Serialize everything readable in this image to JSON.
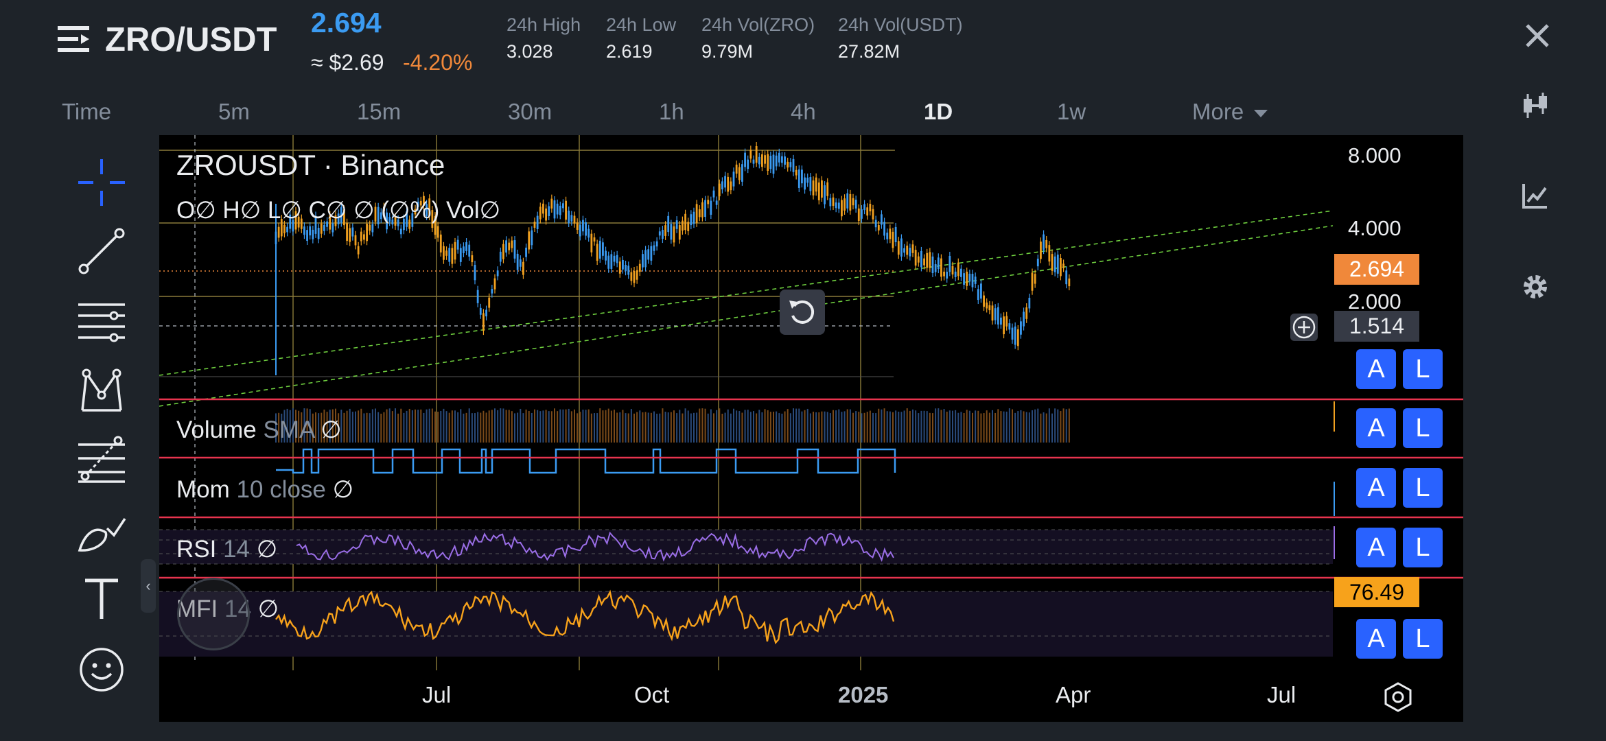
{
  "header": {
    "pair": "ZRO/USDT",
    "last_price": "2.694",
    "usd_price": "≈ $2.69",
    "change_pct": "-4.20%",
    "stats": [
      {
        "label": "24h High",
        "value": "3.028"
      },
      {
        "label": "24h Low",
        "value": "2.619"
      },
      {
        "label": "24h Vol(ZRO)",
        "value": "9.79M"
      },
      {
        "label": "24h Vol(USDT)",
        "value": "27.82M"
      }
    ]
  },
  "timeframes": {
    "items": [
      "Time",
      "5m",
      "15m",
      "30m",
      "1h",
      "4h",
      "1D",
      "1w"
    ],
    "more": "More",
    "active": "1D"
  },
  "chart": {
    "symbol_title": "ZROUSDT · Binance",
    "ohlc_line": "O∅ H∅ L∅ C∅ ∅ (∅%)  Vol∅",
    "price_ticks": [
      "8.000",
      "4.000",
      "2.000"
    ],
    "current_price_tag": "2.694",
    "crosshair_price_tag": "1.514",
    "mfi_value_tag": "76.49",
    "time_ticks": [
      "Jul",
      "Oct",
      "2025",
      "Apr",
      "Jul"
    ],
    "indicators": [
      {
        "name": "Volume",
        "params": "SMA",
        "value": "∅"
      },
      {
        "name": "Mom",
        "params": "10 close",
        "value": "∅"
      },
      {
        "name": "RSI",
        "params": "14",
        "value": "∅"
      },
      {
        "name": "MFI",
        "params": "14",
        "value": "∅"
      }
    ],
    "pane_buttons": {
      "alert": "A",
      "log": "L"
    },
    "colors": {
      "up": "#f0a020",
      "down": "#3b9bf2",
      "trendline": "#6fcf3f",
      "mom": "#3b9bf2",
      "rsi": "#9b6ee8",
      "mfi": "#f7a21b",
      "separator": "#e8344e",
      "accent": "#2962ff",
      "price_tag": "#f0883a"
    }
  }
}
